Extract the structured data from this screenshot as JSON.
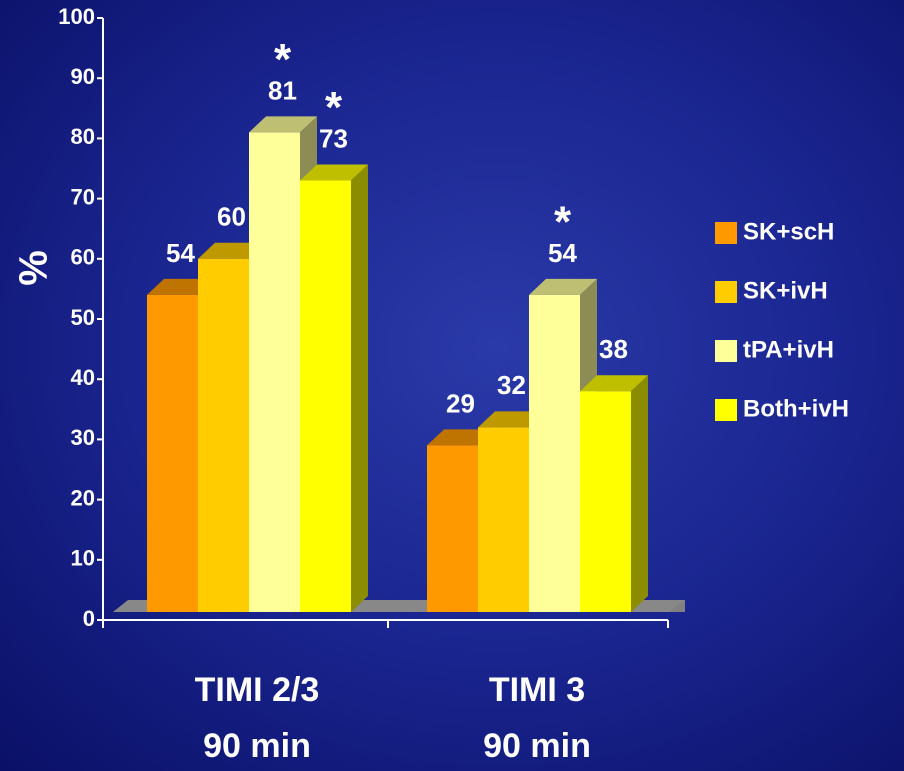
{
  "chart_data": {
    "type": "bar3d",
    "ylabel": "%",
    "categories": [
      "TIMI 2/3\n90 min",
      "TIMI 3\n90 min"
    ],
    "series": [
      {
        "name": "SK+scH",
        "color": "#ff9900",
        "values": [
          54,
          29
        ]
      },
      {
        "name": "SK+ivH",
        "color": "#ffcc00",
        "values": [
          60,
          32
        ]
      },
      {
        "name": "tPA+ivH",
        "color": "#ffff99",
        "values": [
          81,
          54
        ]
      },
      {
        "name": "Both+ivH",
        "color": "#ffff00",
        "values": [
          73,
          38
        ]
      }
    ],
    "annotations": [
      {
        "text": "*",
        "series": "tPA+ivH",
        "category": "TIMI 2/3\n90 min"
      },
      {
        "text": "*",
        "series": "Both+ivH",
        "category": "TIMI 2/3\n90 min"
      },
      {
        "text": "*",
        "series": "tPA+ivH",
        "category": "TIMI 3\n90 min"
      }
    ],
    "ylim": [
      0,
      100
    ],
    "yticks": [
      0,
      10,
      20,
      30,
      40,
      50,
      60,
      70,
      80,
      90,
      100
    ],
    "legend": "right"
  }
}
